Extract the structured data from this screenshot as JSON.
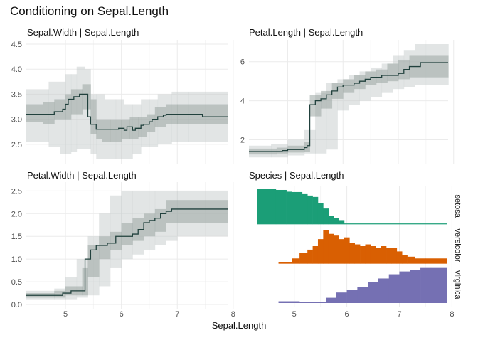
{
  "title": "Conditioning on Sepal.Length",
  "xlabel": "Sepal.Length",
  "chart_data": [
    {
      "type": "line",
      "subtype": "conditional-step-with-interval-bands",
      "title": "Sepal.Width | Sepal.Length",
      "xlim": [
        4.3,
        7.9
      ],
      "ylim": [
        2.2,
        4.5
      ],
      "x_ticks": [
        5,
        6,
        7,
        8
      ],
      "y_ticks": [
        2.5,
        3.0,
        3.5,
        4.0,
        4.5
      ],
      "y_tick_labels": [
        "2.5",
        "3.0",
        "3.5",
        "4.0",
        "4.5"
      ],
      "grid": true,
      "median": {
        "x": [
          4.3,
          4.7,
          4.8,
          4.85,
          4.95,
          5.0,
          5.05,
          5.15,
          5.25,
          5.4,
          5.45,
          5.55,
          5.6,
          5.7,
          5.8,
          5.95,
          6.05,
          6.1,
          6.2,
          6.25,
          6.35,
          6.4,
          6.5,
          6.55,
          6.6,
          6.65,
          6.75,
          6.8,
          7.2,
          7.45,
          7.9
        ],
        "y": [
          3.1,
          3.1,
          3.15,
          3.15,
          3.2,
          3.3,
          3.4,
          3.45,
          3.5,
          3.05,
          2.9,
          2.8,
          2.8,
          2.8,
          2.8,
          2.82,
          2.78,
          2.85,
          2.78,
          2.82,
          2.88,
          2.9,
          2.95,
          3.0,
          3.0,
          3.05,
          3.08,
          3.1,
          3.1,
          3.05,
          3.05
        ]
      },
      "outer_band": {
        "x": [
          4.3,
          4.7,
          4.9,
          5.0,
          5.1,
          5.2,
          5.35,
          5.45,
          5.55,
          5.7,
          5.9,
          6.05,
          6.2,
          6.35,
          6.5,
          6.65,
          6.8,
          6.9,
          7.2,
          7.9
        ],
        "lower": [
          2.55,
          2.45,
          2.3,
          2.3,
          2.35,
          2.4,
          2.4,
          2.3,
          2.2,
          2.2,
          2.2,
          2.2,
          2.3,
          2.45,
          2.45,
          2.5,
          2.5,
          2.55,
          2.55,
          2.55
        ],
        "upper": [
          3.6,
          3.75,
          3.75,
          3.9,
          3.9,
          4.05,
          4.0,
          3.5,
          3.5,
          3.4,
          3.4,
          3.3,
          3.3,
          3.4,
          3.4,
          3.5,
          3.5,
          3.55,
          3.55,
          3.55
        ]
      },
      "inner_band": {
        "x": [
          4.3,
          4.6,
          4.8,
          5.0,
          5.1,
          5.3,
          5.45,
          5.55,
          5.65,
          5.8,
          6.0,
          6.15,
          6.3,
          6.45,
          6.6,
          6.8,
          7.0,
          7.9
        ],
        "lower": [
          2.95,
          2.9,
          3.0,
          3.0,
          3.1,
          3.2,
          2.7,
          2.6,
          2.55,
          2.55,
          2.6,
          2.6,
          2.65,
          2.75,
          2.85,
          2.9,
          2.9,
          2.9
        ],
        "upper": [
          3.3,
          3.35,
          3.4,
          3.5,
          3.6,
          3.7,
          3.4,
          3.0,
          3.0,
          3.0,
          3.0,
          3.05,
          3.05,
          3.1,
          3.25,
          3.3,
          3.3,
          3.3
        ]
      }
    },
    {
      "type": "line",
      "subtype": "conditional-step-with-interval-bands",
      "title": "Petal.Length | Sepal.Length",
      "xlim": [
        4.3,
        7.9
      ],
      "ylim": [
        1.0,
        6.9
      ],
      "x_ticks": [
        5,
        6,
        7,
        8
      ],
      "y_ticks": [
        2,
        4,
        6
      ],
      "y_tick_labels": [
        "2",
        "4",
        "6"
      ],
      "grid": true,
      "median": {
        "x": [
          4.3,
          4.8,
          4.9,
          5.0,
          5.1,
          5.3,
          5.35,
          5.4,
          5.5,
          5.6,
          5.7,
          5.8,
          5.9,
          6.0,
          6.1,
          6.2,
          6.3,
          6.4,
          6.5,
          6.6,
          6.7,
          6.8,
          7.0,
          7.1,
          7.2,
          7.4,
          7.9
        ],
        "y": [
          1.4,
          1.4,
          1.45,
          1.5,
          1.5,
          1.6,
          1.7,
          3.8,
          4.0,
          4.1,
          4.3,
          4.5,
          4.7,
          4.8,
          4.8,
          4.9,
          5.0,
          5.1,
          5.2,
          5.2,
          5.3,
          5.3,
          5.4,
          5.6,
          5.75,
          5.95,
          5.95
        ]
      },
      "outer_band": {
        "x": [
          4.3,
          4.7,
          5.0,
          5.3,
          5.5,
          5.7,
          5.9,
          6.1,
          6.3,
          6.5,
          6.7,
          6.9,
          7.1,
          7.3,
          7.9
        ],
        "lower": [
          1.1,
          1.1,
          1.2,
          1.3,
          1.3,
          1.5,
          3.5,
          3.8,
          4.0,
          4.2,
          4.4,
          4.6,
          4.7,
          4.8,
          4.8
        ],
        "upper": [
          1.7,
          1.8,
          2.0,
          2.5,
          4.4,
          4.9,
          5.1,
          5.3,
          5.5,
          5.7,
          5.9,
          6.3,
          6.6,
          6.9,
          6.9
        ]
      },
      "inner_band": {
        "x": [
          4.3,
          4.8,
          5.0,
          5.3,
          5.4,
          5.6,
          5.8,
          6.0,
          6.2,
          6.4,
          6.6,
          6.8,
          7.0,
          7.2,
          7.9
        ],
        "lower": [
          1.25,
          1.3,
          1.35,
          1.4,
          3.2,
          3.6,
          4.1,
          4.4,
          4.6,
          4.8,
          4.9,
          5.0,
          5.1,
          5.2,
          5.2
        ],
        "upper": [
          1.55,
          1.6,
          1.7,
          1.9,
          4.3,
          4.5,
          4.9,
          5.1,
          5.3,
          5.5,
          5.6,
          5.9,
          6.1,
          6.3,
          6.3
        ]
      }
    },
    {
      "type": "line",
      "subtype": "conditional-step-with-interval-bands",
      "title": "Petal.Width | Sepal.Length",
      "xlim": [
        4.3,
        7.9
      ],
      "ylim": [
        0.0,
        2.6
      ],
      "x_ticks": [
        5,
        6,
        7,
        8
      ],
      "y_ticks": [
        0.0,
        0.5,
        1.0,
        1.5,
        2.0,
        2.5
      ],
      "y_tick_labels": [
        "0.0",
        "0.5",
        "1.0",
        "1.5",
        "2.0",
        "2.5"
      ],
      "grid": true,
      "median": {
        "x": [
          4.3,
          4.85,
          4.95,
          5.1,
          5.25,
          5.35,
          5.45,
          5.55,
          5.65,
          5.75,
          5.9,
          6.0,
          6.2,
          6.3,
          6.4,
          6.5,
          6.55,
          6.6,
          6.7,
          6.8,
          6.9,
          7.9
        ],
        "y": [
          0.2,
          0.2,
          0.25,
          0.3,
          0.3,
          1.0,
          1.2,
          1.3,
          1.3,
          1.35,
          1.5,
          1.5,
          1.55,
          1.65,
          1.8,
          1.85,
          1.85,
          1.9,
          2.0,
          2.05,
          2.1,
          2.1
        ]
      },
      "outer_band": {
        "x": [
          4.3,
          4.8,
          5.0,
          5.2,
          5.4,
          5.6,
          5.8,
          6.0,
          6.2,
          6.4,
          6.6,
          6.8,
          7.0,
          7.9
        ],
        "lower": [
          0.1,
          0.1,
          0.1,
          0.15,
          0.2,
          0.4,
          0.8,
          1.0,
          1.1,
          1.2,
          1.3,
          1.4,
          1.5,
          1.5
        ],
        "upper": [
          0.3,
          0.35,
          0.6,
          1.0,
          1.5,
          2.0,
          2.4,
          2.5,
          2.5,
          2.5,
          2.5,
          2.5,
          2.5,
          2.5
        ]
      },
      "inner_band": {
        "x": [
          4.3,
          4.8,
          5.0,
          5.3,
          5.4,
          5.6,
          5.8,
          6.0,
          6.2,
          6.4,
          6.6,
          6.8,
          7.9
        ],
        "lower": [
          0.15,
          0.15,
          0.2,
          0.2,
          0.6,
          1.0,
          1.2,
          1.3,
          1.4,
          1.5,
          1.6,
          1.8,
          1.8
        ],
        "upper": [
          0.25,
          0.3,
          0.4,
          0.8,
          1.3,
          1.5,
          1.6,
          1.8,
          1.9,
          2.0,
          2.1,
          2.3,
          2.3
        ]
      }
    },
    {
      "type": "area",
      "subtype": "stepped-conditional-density-ridges",
      "title": "Species | Sepal.Length",
      "xlim": [
        4.3,
        7.9
      ],
      "x_ticks": [
        5,
        6,
        7,
        8
      ],
      "grid": true,
      "series": [
        {
          "name": "setosa",
          "color": "#1b9e77",
          "x": [
            4.3,
            4.65,
            4.85,
            4.95,
            5.05,
            5.15,
            5.25,
            5.35,
            5.45,
            5.55,
            5.65,
            5.75,
            5.85,
            5.95
          ],
          "density": [
            1.0,
            0.98,
            0.93,
            0.92,
            0.92,
            0.86,
            0.82,
            0.78,
            0.6,
            0.45,
            0.25,
            0.18,
            0.12,
            0.0
          ]
        },
        {
          "name": "versicolor",
          "color": "#d95f02",
          "x": [
            4.7,
            4.95,
            5.1,
            5.25,
            5.35,
            5.45,
            5.55,
            5.65,
            5.75,
            5.85,
            5.95,
            6.05,
            6.15,
            6.25,
            6.35,
            6.45,
            6.55,
            6.65,
            6.75,
            6.85,
            6.95,
            7.05,
            7.15,
            7.3,
            7.5,
            7.9
          ],
          "density": [
            0.05,
            0.15,
            0.3,
            0.4,
            0.5,
            0.7,
            0.95,
            0.85,
            0.8,
            0.7,
            0.75,
            0.6,
            0.55,
            0.5,
            0.55,
            0.5,
            0.45,
            0.5,
            0.45,
            0.45,
            0.35,
            0.25,
            0.2,
            0.15,
            0.15,
            0.15
          ]
        },
        {
          "name": "virginica",
          "color": "#7570b3",
          "x": [
            4.7,
            5.1,
            5.6,
            5.8,
            6.0,
            6.2,
            6.4,
            6.6,
            6.8,
            7.0,
            7.2,
            7.4,
            7.6,
            7.9
          ],
          "density": [
            0.05,
            0.0,
            0.15,
            0.3,
            0.38,
            0.45,
            0.6,
            0.7,
            0.82,
            0.9,
            0.95,
            1.0,
            1.0,
            1.0
          ]
        }
      ]
    }
  ]
}
